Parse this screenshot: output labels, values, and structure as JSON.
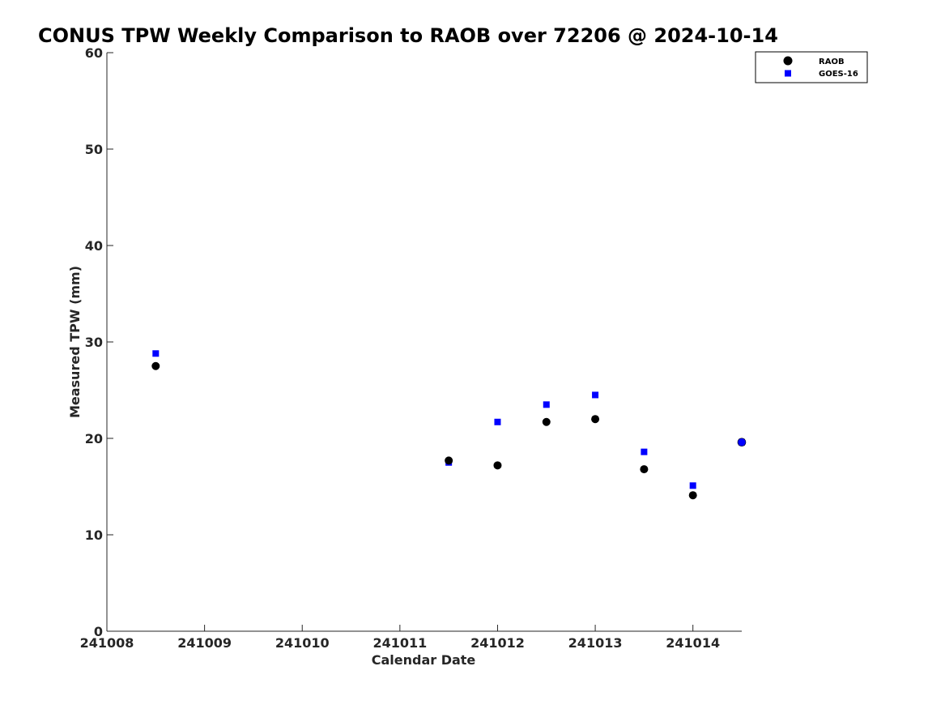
{
  "chart_data": {
    "type": "scatter",
    "title": "CONUS TPW Weekly Comparison to RAOB over 72206 @ 2024-10-14",
    "xlabel": "Calendar Date",
    "ylabel": "Measured TPW (mm)",
    "xlim": [
      241008,
      241014.5
    ],
    "ylim": [
      0,
      60
    ],
    "xticks": [
      241008,
      241009,
      241010,
      241011,
      241012,
      241013,
      241014
    ],
    "xtick_labels": [
      "241008",
      "241009",
      "241010",
      "241011",
      "241012",
      "241013",
      "241014"
    ],
    "yticks": [
      0,
      10,
      20,
      30,
      40,
      50,
      60
    ],
    "ytick_labels": [
      "0",
      "10",
      "20",
      "30",
      "40",
      "50",
      "60"
    ],
    "grid": false,
    "legend_position": "top-right",
    "series": [
      {
        "name": "RAOB",
        "marker": "circle",
        "color": "#000000",
        "x": [
          241008.5,
          241011.5,
          241012.0,
          241012.5,
          241013.0,
          241013.5,
          241014.0,
          241014.5
        ],
        "y": [
          27.5,
          17.7,
          17.2,
          21.7,
          22.0,
          16.8,
          14.1,
          19.6
        ]
      },
      {
        "name": "GOES-16",
        "marker": "square",
        "color": "#0000ff",
        "x": [
          241008.5,
          241011.5,
          241012.0,
          241012.5,
          241013.0,
          241013.5,
          241014.0,
          241014.5
        ],
        "y": [
          28.8,
          17.5,
          21.7,
          23.5,
          24.5,
          18.6,
          15.1,
          19.6
        ]
      }
    ]
  }
}
